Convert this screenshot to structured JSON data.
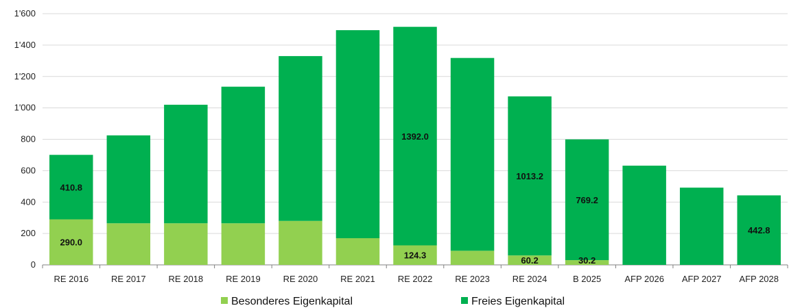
{
  "chart_data": {
    "type": "bar",
    "stacked": true,
    "title": "",
    "xlabel": "",
    "ylabel": "",
    "ylim": [
      0,
      1600
    ],
    "yticks": [
      0,
      200,
      400,
      600,
      800,
      1000,
      1200,
      1400,
      1600
    ],
    "ytick_labels": [
      "0",
      "200",
      "400",
      "600",
      "800",
      "1'000",
      "1'200",
      "1'400",
      "1'600"
    ],
    "grid": "horizontal",
    "legend_position": "bottom",
    "categories": [
      "RE 2016",
      "RE 2017",
      "RE 2018",
      "RE 2019",
      "RE 2020",
      "RE 2021",
      "RE 2022",
      "RE 2023",
      "RE 2024",
      "B 2025",
      "AFP 2026",
      "AFP 2027",
      "AFP 2028"
    ],
    "series": [
      {
        "name": "Besonderes Eigenkapital",
        "color": "#92d050",
        "values": [
          290.0,
          265,
          265,
          265,
          280,
          170,
          124.3,
          90,
          60.2,
          30.2,
          0,
          0,
          0
        ],
        "data_labels": [
          "290.0",
          "",
          "",
          "",
          "",
          "",
          "124.3",
          "",
          "60.2",
          "30.2",
          "",
          "",
          ""
        ]
      },
      {
        "name": "Freies Eigenkapital",
        "color": "#00b050",
        "values": [
          410.8,
          560,
          755,
          870,
          1050,
          1325,
          1392.0,
          1228,
          1013.2,
          769.2,
          632,
          492,
          442.8
        ],
        "data_labels": [
          "410.8",
          "",
          "",
          "",
          "",
          "",
          "1392.0",
          "",
          "1013.2",
          "769.2",
          "",
          "",
          "442.8"
        ]
      }
    ]
  }
}
